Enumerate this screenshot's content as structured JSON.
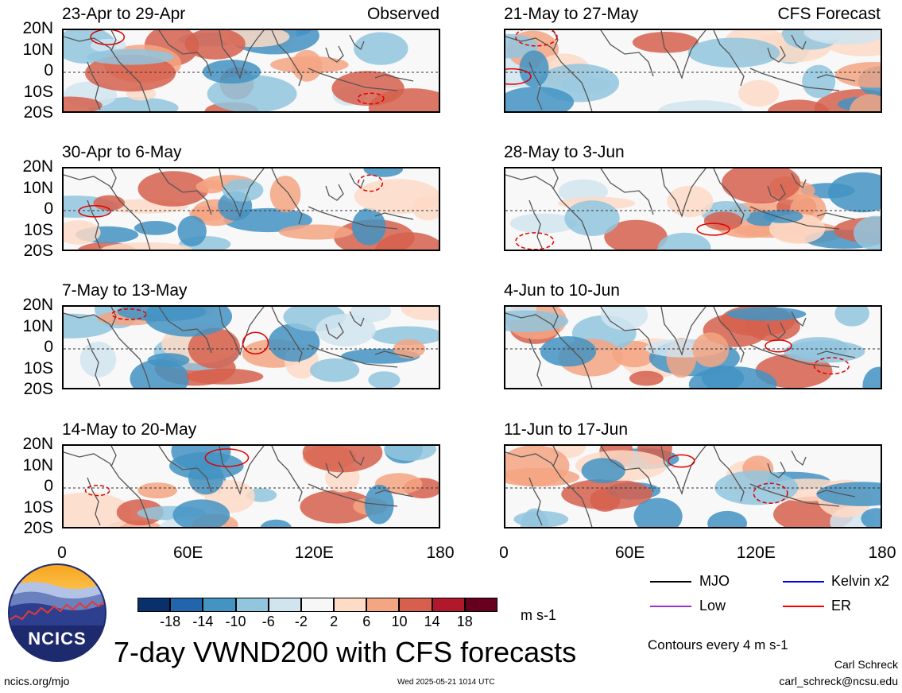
{
  "chart_data": {
    "type": "heatmap",
    "title": "7-day VWND200 with CFS forecasts",
    "units": "m s-1",
    "contour_note": "Contours every 4 m s-1",
    "lat_ticks": [
      "20N",
      "10N",
      "0",
      "10S",
      "20S"
    ],
    "lon_ticks": [
      "0",
      "60E",
      "120E",
      "180"
    ],
    "xlim": [
      0,
      180
    ],
    "ylim": [
      -20,
      20
    ],
    "column_labels": {
      "observed": "Observed",
      "forecast": "CFS Forecast"
    },
    "observed_panels": [
      {
        "period": "23-Apr to 29-Apr"
      },
      {
        "period": "30-Apr to 6-May"
      },
      {
        "period": "7-May to 13-May"
      },
      {
        "period": "14-May to 20-May"
      }
    ],
    "forecast_panels": [
      {
        "period": "21-May to 27-May"
      },
      {
        "period": "28-May to 3-Jun"
      },
      {
        "period": "4-Jun to 10-Jun"
      },
      {
        "period": "11-Jun to 17-Jun"
      }
    ],
    "colorbar": {
      "ticks": [
        "-18",
        "-14",
        "-10",
        "-6",
        "-2",
        "2",
        "6",
        "10",
        "14",
        "18"
      ],
      "colors": [
        "#08306b",
        "#2166ac",
        "#4393c3",
        "#92c5de",
        "#d1e5f0",
        "#f7f7f7",
        "#fddbc7",
        "#f4a582",
        "#d6604d",
        "#b2182b",
        "#67001f"
      ]
    },
    "legend": [
      {
        "label": "MJO",
        "color": "#000000"
      },
      {
        "label": "Kelvin x2",
        "color": "#0000ff"
      },
      {
        "label": "Low",
        "color": "#9933cc"
      },
      {
        "label": "ER",
        "color": "#ff0000"
      }
    ],
    "grid": false
  },
  "logo": {
    "text": "NCICS"
  },
  "footer": {
    "url": "ncics.org/mjo",
    "timestamp": "Wed 2025-05-21 1014 UTC",
    "author": "Carl Schreck",
    "email": "carl_schreck@ncsu.edu"
  }
}
